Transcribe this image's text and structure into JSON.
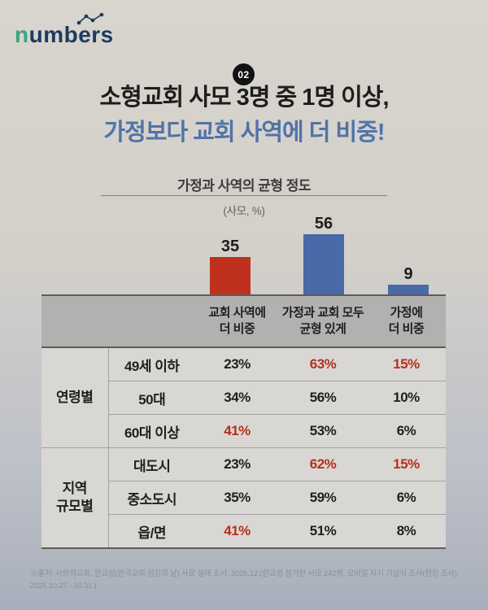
{
  "brand": {
    "logo_n": "n",
    "logo_rest": "umbers",
    "green": "#35a77c",
    "navy": "#1d3a5c"
  },
  "badge": "02",
  "title": {
    "line1": "소형교회 사모 3명 중 1명 이상,",
    "line2": "가정보다 교회 사역에 더 비중!",
    "line2_color": "#5173a8"
  },
  "chart_data": {
    "type": "bar",
    "title": "가정과 사역의 균형 정도",
    "unit_label": "(사모, %)",
    "categories": [
      "교회 사역에 더 비중",
      "가정과 교회 모두 균형 있게",
      "가정에 더 비중"
    ],
    "values": [
      35,
      56,
      9
    ],
    "colors": [
      "#bf311c",
      "#4a69a8",
      "#4a69a8"
    ],
    "ylim": [
      0,
      60
    ],
    "grid": false,
    "legend": "none",
    "table": {
      "col_headers": [
        "교회 사역에\n더 비중",
        "가정과 교회 모두\n균형 있게",
        "가정에\n더 비중"
      ],
      "groups": [
        {
          "label": "연령별",
          "rows": [
            {
              "category": "49세 이하",
              "values": [
                "23%",
                "63%",
                "15%"
              ],
              "highlight": [
                false,
                true,
                true
              ]
            },
            {
              "category": "50대",
              "values": [
                "34%",
                "56%",
                "10%"
              ],
              "highlight": [
                false,
                false,
                false
              ]
            },
            {
              "category": "60대 이상",
              "values": [
                "41%",
                "53%",
                "6%"
              ],
              "highlight": [
                true,
                false,
                false
              ]
            }
          ]
        },
        {
          "label": "지역\n규모별",
          "rows": [
            {
              "category": "대도시",
              "values": [
                "23%",
                "62%",
                "15%"
              ],
              "highlight": [
                false,
                true,
                true
              ]
            },
            {
              "category": "중소도시",
              "values": [
                "35%",
                "59%",
                "6%"
              ],
              "highlight": [
                false,
                false,
                false
              ]
            },
            {
              "category": "읍/면",
              "values": [
                "41%",
                "51%",
                "8%"
              ],
              "highlight": [
                true,
                false,
                false
              ]
            }
          ]
        }
      ]
    }
  },
  "footer": {
    "source": "※출처: 사랑의교회, 한교섬(한국교회 섬김의 날) 사모 실태 조사, 2025.12.(한교섬 참가한 사모 242명, 모바일 자기 기입식 조사(현장 조사), 2025.10.27.~10.31.)"
  }
}
